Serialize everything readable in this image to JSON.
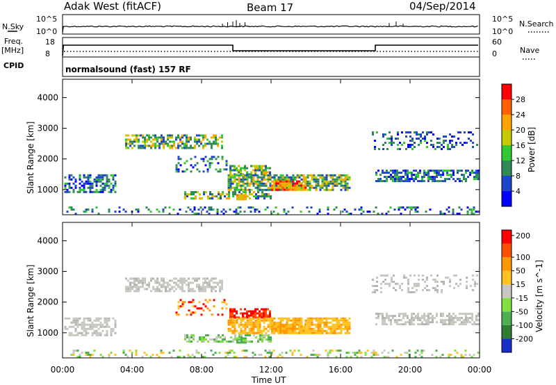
{
  "header": {
    "station": "Adak West (fitACF)",
    "beam": "Beam 17",
    "date": "04/Sep/2014"
  },
  "strip_panels": {
    "nsky_label": "N.Sky",
    "nsky_ticks": [
      "10^5",
      "10^0"
    ],
    "nsearch_label": "N.Search",
    "nsearch_ticks": [
      "10^5",
      "10^0"
    ],
    "freq_label_1": "Freq.",
    "freq_label_2": "[MHz]",
    "freq_ticks": [
      "18",
      "8"
    ],
    "nave_label": "Nave",
    "nave_ticks": [
      "60",
      "0"
    ],
    "cpid_label": "CPID",
    "cpid_text": "normalsound (fast) 157 RF"
  },
  "chart_data": [
    {
      "type": "heatmap",
      "name": "power",
      "ylabel": "Slant Range [km]",
      "yticks": [
        "1000",
        "2000",
        "3000",
        "4000"
      ],
      "ylim": [
        180,
        4600
      ],
      "xlim": [
        0,
        24
      ],
      "colorbar_label": "Power [dB]",
      "colorbar_ticks": [
        "4",
        "8",
        "12",
        "16",
        "20",
        "24",
        "28"
      ],
      "colors": [
        "#0000ff",
        "#1e46c8",
        "#2e8b57",
        "#32c832",
        "#c8c800",
        "#ffa500",
        "#ff6400",
        "#ff0000"
      ]
    },
    {
      "type": "heatmap",
      "name": "velocity",
      "ylabel": "Slant Range [km]",
      "yticks": [
        "1000",
        "2000",
        "3000",
        "4000"
      ],
      "ylim": [
        180,
        4600
      ],
      "xlim": [
        0,
        24
      ],
      "colorbar_label": "Velocity [m s^-1]",
      "colorbar_ticks": [
        "200",
        "100",
        "50",
        "15",
        "-15",
        "-50",
        "-100",
        "-200"
      ],
      "colors": [
        "#1a2ecc",
        "#2e7d32",
        "#4caf50",
        "#80e040",
        "#c8c8c0",
        "#ffc020",
        "#ff9800",
        "#ff5000",
        "#ff0000"
      ],
      "xlabel": "Time UT",
      "xticks": [
        "00:00",
        "04:00",
        "08:00",
        "12:00",
        "16:00",
        "20:00",
        "00:00"
      ]
    }
  ]
}
